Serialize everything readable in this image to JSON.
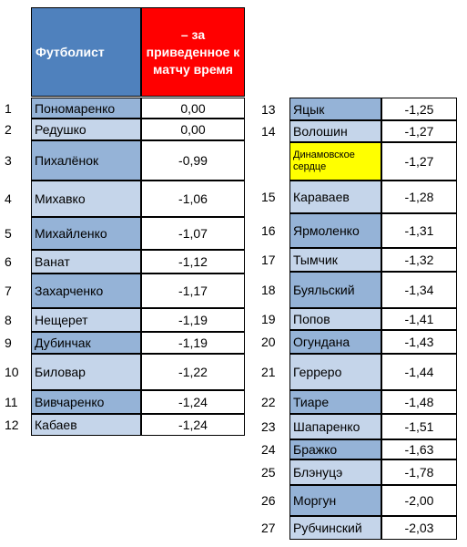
{
  "header": {
    "name": "Футболист",
    "value": "– за приведенное к матчу время"
  },
  "colors": {
    "name_dark": "#95b3d7",
    "name_light": "#c5d5ea",
    "highlight": "#ffff00",
    "header_blue": "#4f81bd",
    "header_red": "#ff0000"
  },
  "left_rows": [
    {
      "rank": "1",
      "name": "Пономаренко",
      "value": "0,00"
    },
    {
      "rank": "2",
      "name": "Редушко",
      "value": "0,00"
    },
    {
      "rank": "3",
      "name": "Пихалёнок",
      "value": "-0,99"
    },
    {
      "rank": "4",
      "name": "Михавко",
      "value": "-1,06"
    },
    {
      "rank": "5",
      "name": "Михайленко",
      "value": "-1,07"
    },
    {
      "rank": "6",
      "name": "Ванат",
      "value": "-1,12"
    },
    {
      "rank": "7",
      "name": "Захарченко",
      "value": "-1,17"
    },
    {
      "rank": "8",
      "name": "Нещерет",
      "value": "-1,19"
    },
    {
      "rank": "9",
      "name": "Дубинчак",
      "value": "-1,19"
    },
    {
      "rank": "10",
      "name": "Биловар",
      "value": "-1,22"
    },
    {
      "rank": "11",
      "name": "Вивчаренко",
      "value": "-1,24"
    },
    {
      "rank": "12",
      "name": "Кабаев",
      "value": "-1,24"
    }
  ],
  "right_rows": [
    {
      "rank": "13",
      "name": "Яцык",
      "value": "-1,25"
    },
    {
      "rank": "14",
      "name": "Волошин",
      "value": "-1,27"
    },
    {
      "rank": "",
      "name": "Динамовское сердце",
      "value": "-1,27"
    },
    {
      "rank": "15",
      "name": "Караваев",
      "value": "-1,28"
    },
    {
      "rank": "16",
      "name": "Ярмоленко",
      "value": "-1,31"
    },
    {
      "rank": "17",
      "name": "Тымчик",
      "value": "-1,32"
    },
    {
      "rank": "18",
      "name": "Буяльский",
      "value": "-1,34"
    },
    {
      "rank": "19",
      "name": "Попов",
      "value": "-1,41"
    },
    {
      "rank": "20",
      "name": "Огундана",
      "value": "-1,43"
    },
    {
      "rank": "21",
      "name": "Герреро",
      "value": "-1,44"
    },
    {
      "rank": "22",
      "name": "Тиаре",
      "value": "-1,48"
    },
    {
      "rank": "23",
      "name": "Шапаренко",
      "value": "-1,51"
    },
    {
      "rank": "24",
      "name": "Бражко",
      "value": "-1,63"
    },
    {
      "rank": "25",
      "name": "Блэнуцэ",
      "value": "-1,78"
    },
    {
      "rank": "26",
      "name": "Моргун",
      "value": "-2,00"
    },
    {
      "rank": "27",
      "name": "Рубчинский",
      "value": "-2,03"
    }
  ]
}
